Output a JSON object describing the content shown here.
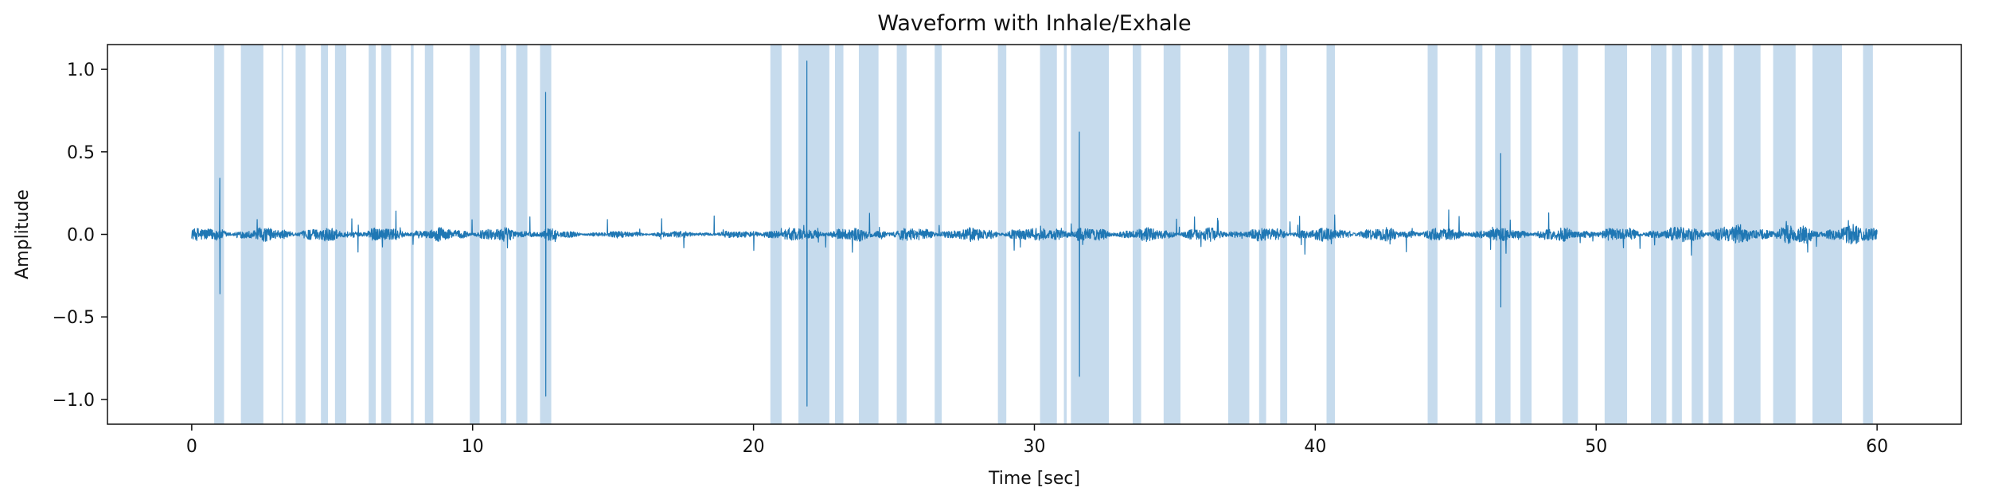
{
  "chart_data": {
    "type": "line",
    "title": "Waveform with Inhale/Exhale",
    "xlabel": "Time [sec]",
    "ylabel": "Amplitude",
    "xlim": [
      -3,
      63
    ],
    "ylim": [
      -1.15,
      1.15
    ],
    "x_ticks": [
      0,
      10,
      20,
      30,
      40,
      50,
      60
    ],
    "x_tick_labels": [
      "0",
      "10",
      "20",
      "30",
      "40",
      "50",
      "60"
    ],
    "y_ticks": [
      -1.0,
      -0.5,
      0.0,
      0.5,
      1.0
    ],
    "y_tick_labels": [
      "−1.0",
      "−0.5",
      "0.0",
      "0.5",
      "1.0"
    ],
    "grid": false,
    "colors": {
      "waveform": "#1f77b4",
      "shaded": "#c6dbed"
    },
    "series": [
      {
        "values": [
          {
            "x": 0.0,
            "y": 0.0
          },
          {
            "x": 1.0,
            "y": 0.34
          },
          {
            "x": 1.0,
            "y": -0.36
          },
          {
            "x": 12.6,
            "y": 0.86
          },
          {
            "x": 12.6,
            "y": -0.98
          },
          {
            "x": 21.9,
            "y": 1.05
          },
          {
            "x": 21.9,
            "y": -1.04
          },
          {
            "x": 31.6,
            "y": 0.62
          },
          {
            "x": 31.6,
            "y": -0.86
          },
          {
            "x": 46.6,
            "y": 0.49
          },
          {
            "x": 46.6,
            "y": -0.44
          },
          {
            "x": 60.0,
            "y": 0.0
          }
        ]
      }
    ],
    "shaded_intervals": [
      [
        0.8,
        1.15
      ],
      [
        1.75,
        2.55
      ],
      [
        3.2,
        3.26
      ],
      [
        3.7,
        4.05
      ],
      [
        4.6,
        4.85
      ],
      [
        5.1,
        5.5
      ],
      [
        6.3,
        6.55
      ],
      [
        6.75,
        7.1
      ],
      [
        7.8,
        7.9
      ],
      [
        8.3,
        8.6
      ],
      [
        9.9,
        10.25
      ],
      [
        11.0,
        11.2
      ],
      [
        11.55,
        11.95
      ],
      [
        12.4,
        12.8
      ],
      [
        20.6,
        21.0
      ],
      [
        21.6,
        22.7
      ],
      [
        22.9,
        23.2
      ],
      [
        23.75,
        24.45
      ],
      [
        25.1,
        25.45
      ],
      [
        26.45,
        26.7
      ],
      [
        28.7,
        29.0
      ],
      [
        30.2,
        30.8
      ],
      [
        31.05,
        31.15
      ],
      [
        31.3,
        32.65
      ],
      [
        33.5,
        33.8
      ],
      [
        34.6,
        35.2
      ],
      [
        36.9,
        37.65
      ],
      [
        38.0,
        38.25
      ],
      [
        38.75,
        39.0
      ],
      [
        40.4,
        40.7
      ],
      [
        44.0,
        44.35
      ],
      [
        45.7,
        45.95
      ],
      [
        46.4,
        46.95
      ],
      [
        47.3,
        47.7
      ],
      [
        48.8,
        49.35
      ],
      [
        50.3,
        51.1
      ],
      [
        51.95,
        52.5
      ],
      [
        52.7,
        53.05
      ],
      [
        53.4,
        53.8
      ],
      [
        54.0,
        54.5
      ],
      [
        54.9,
        55.85
      ],
      [
        56.3,
        57.1
      ],
      [
        57.7,
        58.75
      ],
      [
        59.5,
        59.85
      ]
    ]
  }
}
